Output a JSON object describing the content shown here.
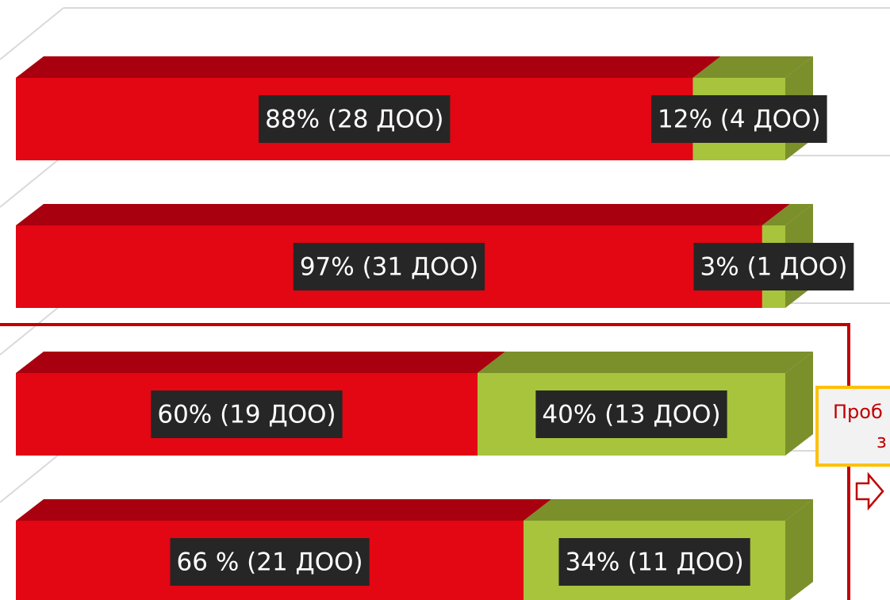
{
  "chart_data": {
    "type": "bar",
    "orientation": "horizontal",
    "stacked": true,
    "three_d": true,
    "categories": [
      null,
      null,
      null,
      null
    ],
    "xlim": [
      0,
      100
    ],
    "series": [
      {
        "name": null,
        "color": "#e30613",
        "top_color": "#a8000f",
        "values": [
          88,
          97,
          60,
          66
        ],
        "value_labels": [
          "88% (28 ДОО)",
          "97% (31 ДОО)",
          "60% (19 ДОО)",
          "66 % (21 ДОО)"
        ]
      },
      {
        "name": null,
        "color": "#a7c43c",
        "top_color": "#7b8f2b",
        "values": [
          12,
          3,
          40,
          34
        ],
        "value_labels": [
          "12% (4 ДОО)",
          "3% (1 ДОО)",
          "40% (13 ДОО)",
          "34% (11 ДОО)"
        ]
      }
    ],
    "annotations": [
      "Проб",
      "з"
    ]
  }
}
